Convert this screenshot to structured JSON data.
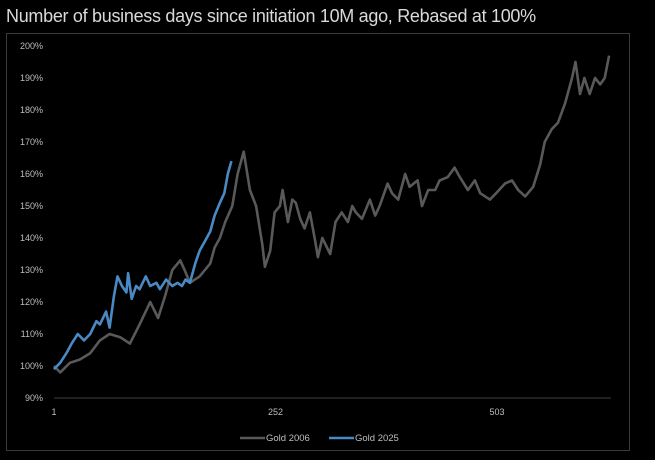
{
  "chart_data": {
    "type": "line",
    "title": "Number of business days since initiation 10M ago, Rebased at 100%",
    "xlabel": "",
    "ylabel": "",
    "xlim": [
      1,
      640
    ],
    "ylim": [
      0.9,
      2.0
    ],
    "x_ticks": [
      1,
      252,
      503
    ],
    "x_tick_labels": [
      "1",
      "252",
      "503"
    ],
    "y_ticks": [
      0.9,
      1.0,
      1.1,
      1.2,
      1.3,
      1.4,
      1.5,
      1.6,
      1.7,
      1.8,
      1.9,
      2.0
    ],
    "y_tick_labels": [
      "90%",
      "100%",
      "110%",
      "120%",
      "130%",
      "140%",
      "150%",
      "160%",
      "170%",
      "180%",
      "190%",
      "200%"
    ],
    "grid": false,
    "legend_position": "bottom",
    "series": [
      {
        "name": "Gold 2006",
        "color": "#595959",
        "x": [
          1,
          8,
          19,
          30,
          42,
          53,
          64,
          76,
          87,
          98,
          110,
          119,
          127,
          135,
          144,
          149,
          155,
          166,
          178,
          183,
          189,
          195,
          203,
          209,
          216,
          223,
          230,
          237,
          240,
          246,
          251,
          257,
          260,
          266,
          271,
          275,
          280,
          285,
          291,
          297,
          300,
          305,
          314,
          320,
          327,
          334,
          339,
          343,
          350,
          359,
          365,
          370,
          379,
          384,
          391,
          399,
          404,
          413,
          418,
          425,
          433,
          438,
          447,
          455,
          461,
          470,
          478,
          484,
          495,
          502,
          512,
          520,
          527,
          535,
          544,
          552,
          557,
          565,
          572,
          580,
          588,
          592,
          597,
          602,
          608,
          614,
          620,
          625,
          630
        ],
        "y": [
          1.0,
          0.98,
          1.01,
          1.02,
          1.04,
          1.08,
          1.1,
          1.09,
          1.07,
          1.13,
          1.2,
          1.15,
          1.22,
          1.3,
          1.33,
          1.3,
          1.26,
          1.28,
          1.32,
          1.37,
          1.4,
          1.45,
          1.5,
          1.6,
          1.67,
          1.55,
          1.5,
          1.38,
          1.31,
          1.36,
          1.48,
          1.5,
          1.55,
          1.45,
          1.52,
          1.51,
          1.46,
          1.43,
          1.48,
          1.39,
          1.34,
          1.4,
          1.35,
          1.45,
          1.48,
          1.45,
          1.5,
          1.48,
          1.46,
          1.52,
          1.47,
          1.5,
          1.57,
          1.54,
          1.52,
          1.6,
          1.56,
          1.58,
          1.5,
          1.55,
          1.55,
          1.58,
          1.59,
          1.62,
          1.59,
          1.55,
          1.58,
          1.54,
          1.52,
          1.54,
          1.57,
          1.58,
          1.55,
          1.53,
          1.56,
          1.63,
          1.7,
          1.74,
          1.76,
          1.82,
          1.9,
          1.95,
          1.85,
          1.9,
          1.85,
          1.9,
          1.88,
          1.9,
          1.97
        ]
      },
      {
        "name": "Gold 2025",
        "color": "#4a8ac4",
        "x": [
          1,
          8,
          15,
          21,
          28,
          35,
          42,
          49,
          53,
          60,
          64,
          69,
          73,
          78,
          83,
          85,
          89,
          94,
          98,
          105,
          110,
          117,
          121,
          128,
          135,
          141,
          146,
          150,
          155,
          161,
          166,
          172,
          178,
          183,
          189,
          194,
          198,
          202
        ],
        "y": [
          0.99,
          1.01,
          1.04,
          1.07,
          1.1,
          1.08,
          1.1,
          1.14,
          1.13,
          1.17,
          1.12,
          1.22,
          1.28,
          1.25,
          1.23,
          1.29,
          1.21,
          1.25,
          1.24,
          1.28,
          1.25,
          1.26,
          1.24,
          1.27,
          1.25,
          1.26,
          1.25,
          1.27,
          1.26,
          1.32,
          1.36,
          1.39,
          1.42,
          1.47,
          1.51,
          1.54,
          1.6,
          1.64
        ]
      }
    ]
  }
}
